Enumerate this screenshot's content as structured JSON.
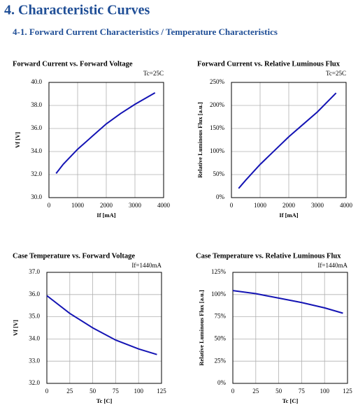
{
  "header": {
    "title": "4. Characteristic Curves",
    "subtitle": "4-1. Forward Current Characteristics / Temperature Characteristics"
  },
  "chart_data": [
    {
      "type": "line",
      "title": "Forward Current vs. Forward Voltage",
      "annotation": "Tc=25C",
      "x_label": "If [mA]",
      "y_label": "Vf [V]",
      "color": "#1414b4",
      "grid": true,
      "x": [
        250,
        500,
        1000,
        1500,
        2000,
        2500,
        3000,
        3700
      ],
      "values": [
        32.1,
        32.9,
        34.2,
        35.3,
        36.4,
        37.3,
        38.1,
        39.1
      ],
      "xlim": [
        0,
        4000
      ],
      "xticks": [
        0,
        1000,
        2000,
        3000,
        4000
      ],
      "ylim": [
        30,
        40
      ],
      "yticks": [
        {
          "value": 30,
          "label": "30.0"
        },
        {
          "value": 32,
          "label": "32.0"
        },
        {
          "value": 34,
          "label": "34.0"
        },
        {
          "value": 36,
          "label": "36.0"
        },
        {
          "value": 38,
          "label": "38.0"
        },
        {
          "value": 40,
          "label": "40.0"
        }
      ]
    },
    {
      "type": "line",
      "title": "Forward Current vs. Relative Luminous Flux",
      "annotation": "Tc=25C",
      "x_label": "If [mA]",
      "y_label": "Relative Luminous Flux [a.u.]",
      "color": "#1414b4",
      "grid": true,
      "x": [
        250,
        500,
        1000,
        1500,
        2000,
        2500,
        3000,
        3650
      ],
      "values": [
        20,
        38,
        72,
        102,
        132,
        159,
        186,
        227
      ],
      "xlim": [
        0,
        4000
      ],
      "xticks": [
        0,
        1000,
        2000,
        3000,
        4000
      ],
      "ylim": [
        0,
        250
      ],
      "yticks": [
        {
          "value": 0,
          "label": "0%"
        },
        {
          "value": 50,
          "label": "50%"
        },
        {
          "value": 100,
          "label": "100%"
        },
        {
          "value": 150,
          "label": "150%"
        },
        {
          "value": 200,
          "label": "200%"
        },
        {
          "value": 250,
          "label": "250%"
        }
      ]
    },
    {
      "type": "line",
      "title": "Case Temperature vs. Forward Voltage",
      "annotation": "If=1440mA",
      "x_label": "Tc [C]",
      "y_label": "Vf [V]",
      "color": "#1414b4",
      "grid": true,
      "x": [
        0,
        25,
        50,
        75,
        100,
        120
      ],
      "values": [
        35.95,
        35.15,
        34.5,
        33.95,
        33.55,
        33.3
      ],
      "xlim": [
        0,
        125
      ],
      "xticks": [
        0,
        25,
        50,
        75,
        100,
        125
      ],
      "ylim": [
        32,
        37
      ],
      "yticks": [
        {
          "value": 32,
          "label": "32.0"
        },
        {
          "value": 33,
          "label": "33.0"
        },
        {
          "value": 34,
          "label": "34.0"
        },
        {
          "value": 35,
          "label": "35.0"
        },
        {
          "value": 36,
          "label": "36.0"
        },
        {
          "value": 37,
          "label": "37.0"
        }
      ]
    },
    {
      "type": "line",
      "title": "Case Temperature vs. Relative Luminous Flux",
      "annotation": "If=1440mA",
      "x_label": "Tc [C]",
      "y_label": "Relative Luminous Flux [a.u.]",
      "color": "#1414b4",
      "grid": true,
      "x": [
        0,
        25,
        50,
        75,
        100,
        120
      ],
      "values": [
        104.5,
        101,
        96,
        91,
        85,
        79
      ],
      "xlim": [
        0,
        125
      ],
      "xticks": [
        0,
        25,
        50,
        75,
        100,
        125
      ],
      "ylim": [
        0,
        125
      ],
      "yticks": [
        {
          "value": 0,
          "label": "0%"
        },
        {
          "value": 25,
          "label": "25%"
        },
        {
          "value": 50,
          "label": "50%"
        },
        {
          "value": 75,
          "label": "75%"
        },
        {
          "value": 100,
          "label": "100%"
        },
        {
          "value": 125,
          "label": "125%"
        }
      ]
    }
  ]
}
